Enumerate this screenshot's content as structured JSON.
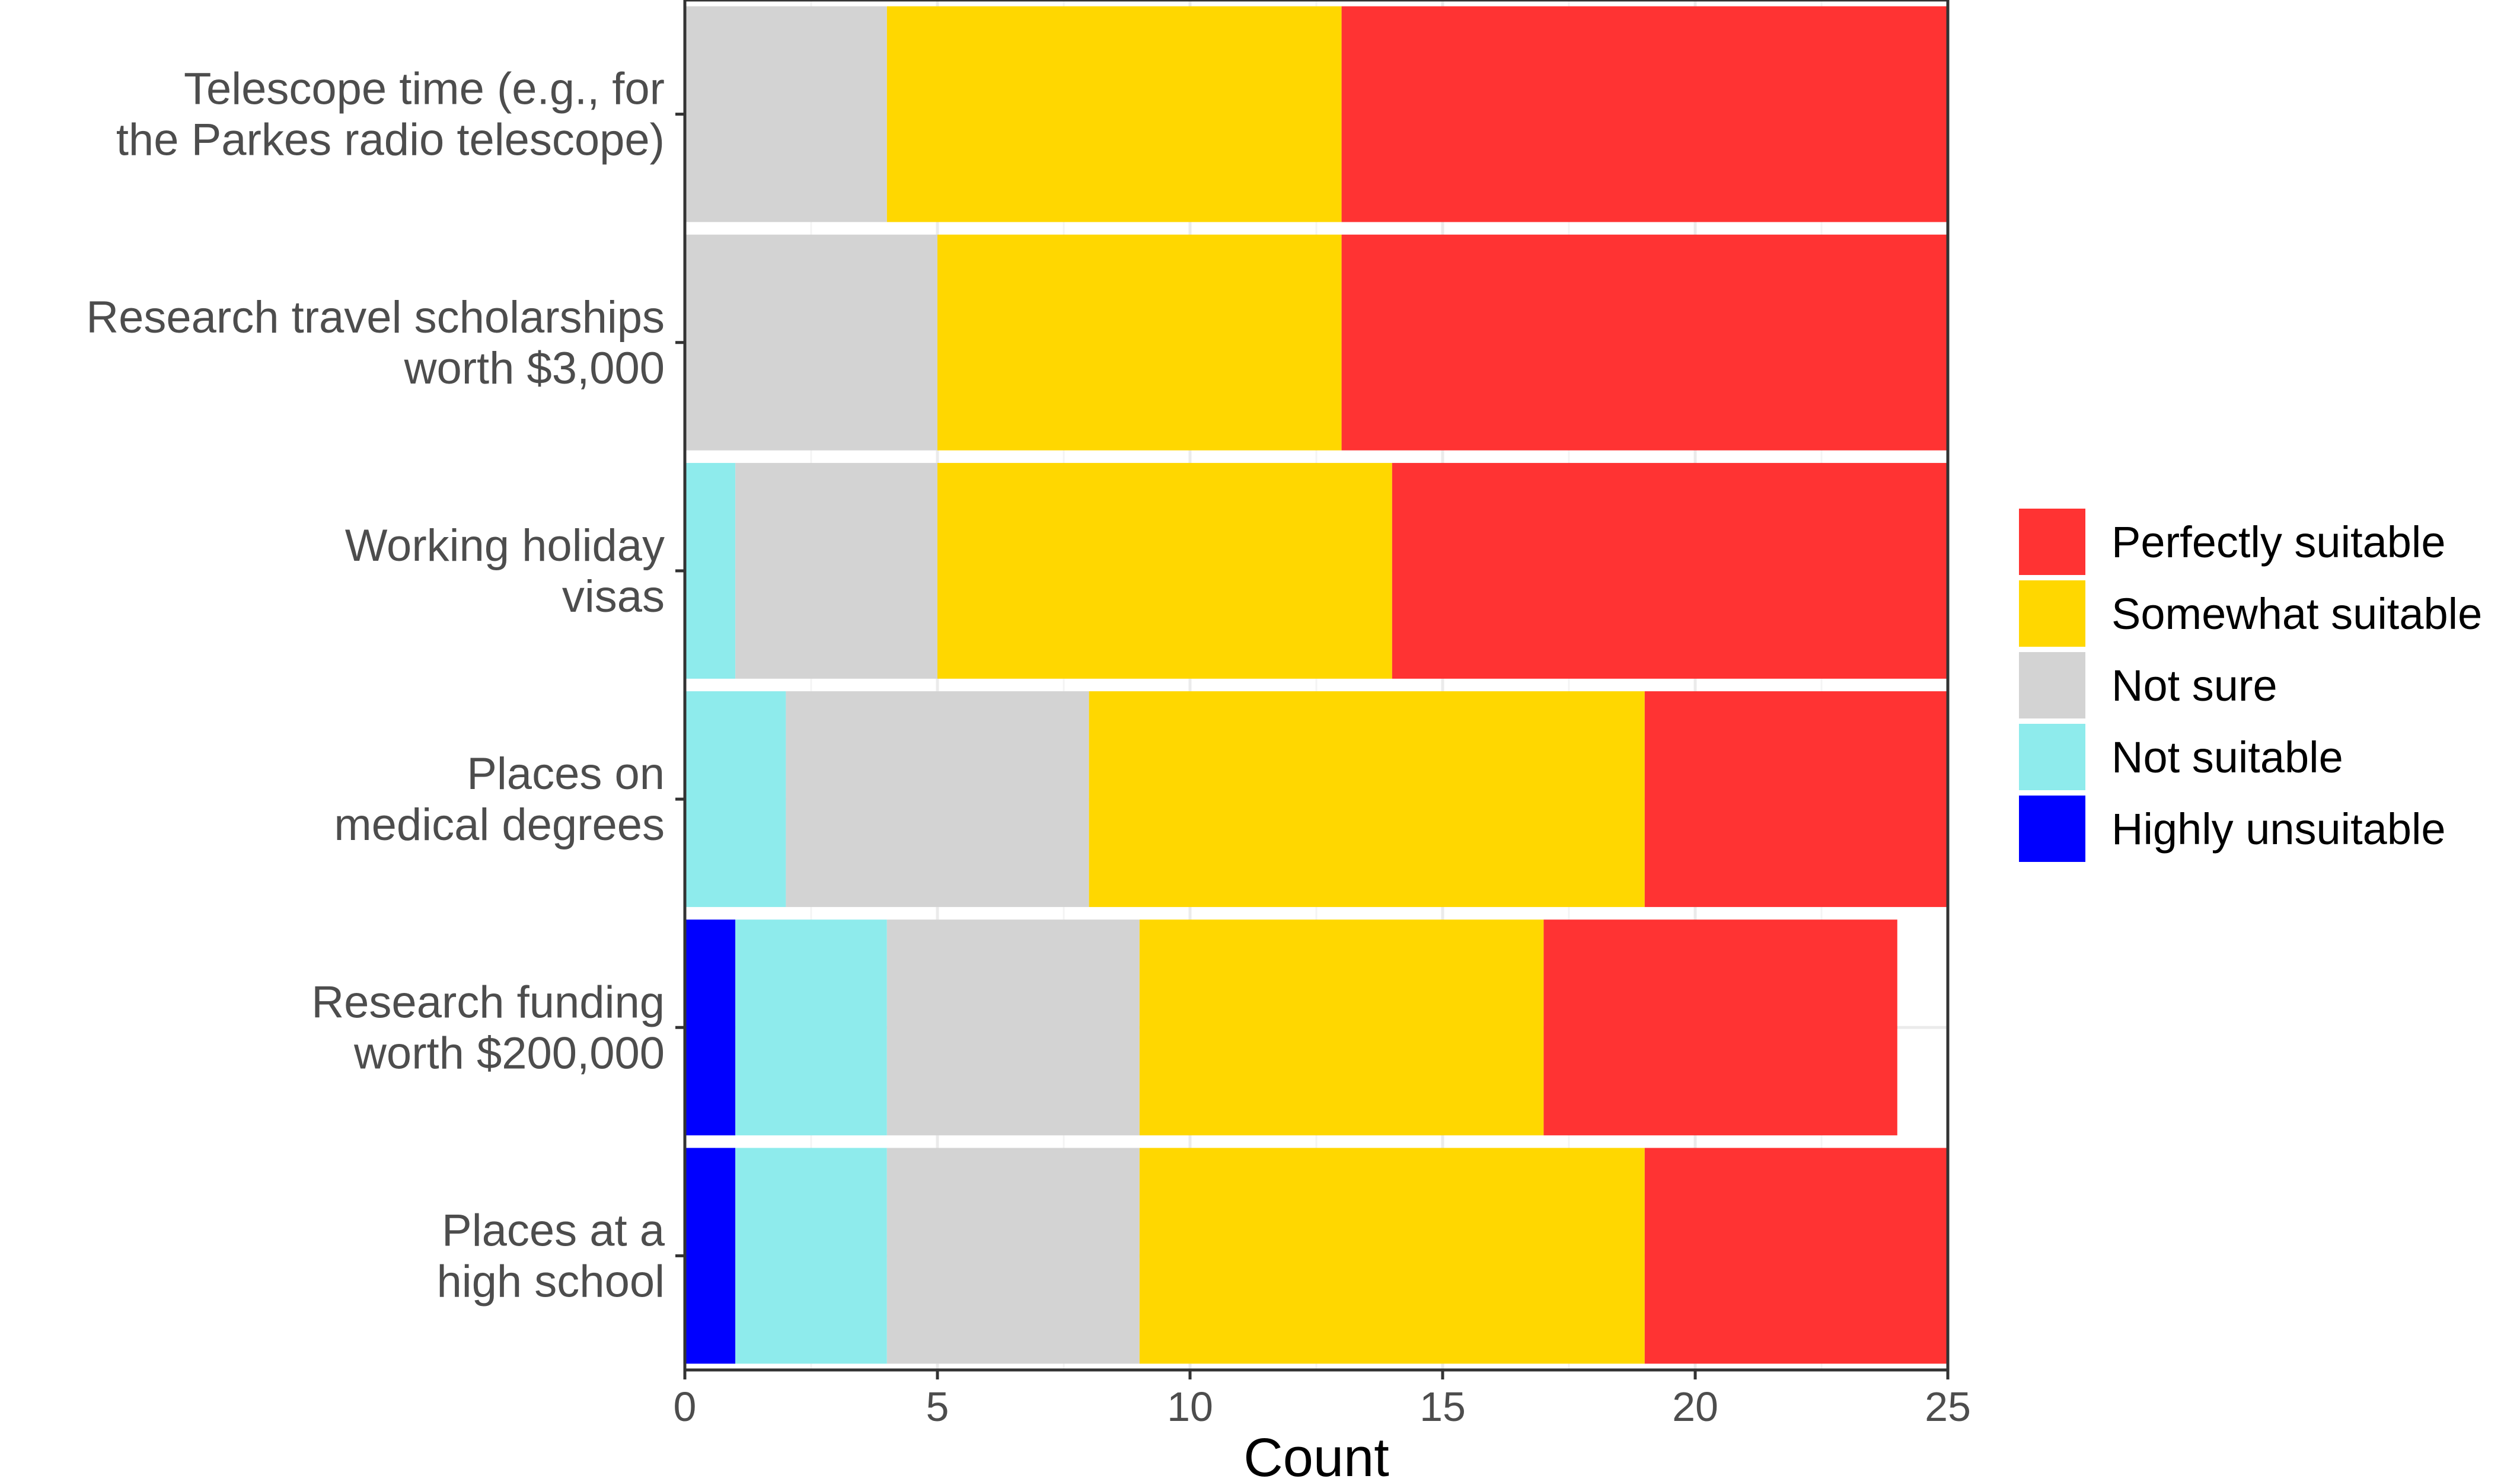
{
  "chart_data": {
    "type": "bar",
    "orientation": "horizontal",
    "stacked": true,
    "title": "",
    "xlabel": "Count",
    "ylabel": "",
    "xlim": [
      0,
      25
    ],
    "xticks": [
      0,
      5,
      10,
      15,
      20,
      25
    ],
    "grid": true,
    "legend_position": "right",
    "categories": [
      [
        "Telescope time (e.g., for",
        "the Parkes radio telescope)"
      ],
      [
        "Research travel scholarships",
        "worth $3,000"
      ],
      [
        "Working holiday",
        "visas"
      ],
      [
        "Places on",
        "medical degrees"
      ],
      [
        "Research funding",
        "worth $200,000"
      ],
      [
        "Places at a",
        "high school"
      ]
    ],
    "series": [
      {
        "name": "Highly unsuitable",
        "color": "#0000FF",
        "values": [
          0,
          0,
          0,
          0,
          1,
          1
        ]
      },
      {
        "name": "Not suitable",
        "color": "#8EEBEC",
        "values": [
          0,
          0,
          1,
          2,
          3,
          3
        ]
      },
      {
        "name": "Not sure",
        "color": "#D3D3D3",
        "values": [
          4,
          5,
          4,
          6,
          5,
          5
        ]
      },
      {
        "name": "Somewhat suitable",
        "color": "#FFD700",
        "values": [
          9,
          8,
          9,
          11,
          8,
          10
        ]
      },
      {
        "name": "Perfectly suitable",
        "color": "#FF3333",
        "values": [
          12,
          12,
          11,
          6,
          7,
          6
        ]
      }
    ],
    "legend_order": [
      "Perfectly suitable",
      "Somewhat suitable",
      "Not sure",
      "Not suitable",
      "Highly unsuitable"
    ]
  }
}
